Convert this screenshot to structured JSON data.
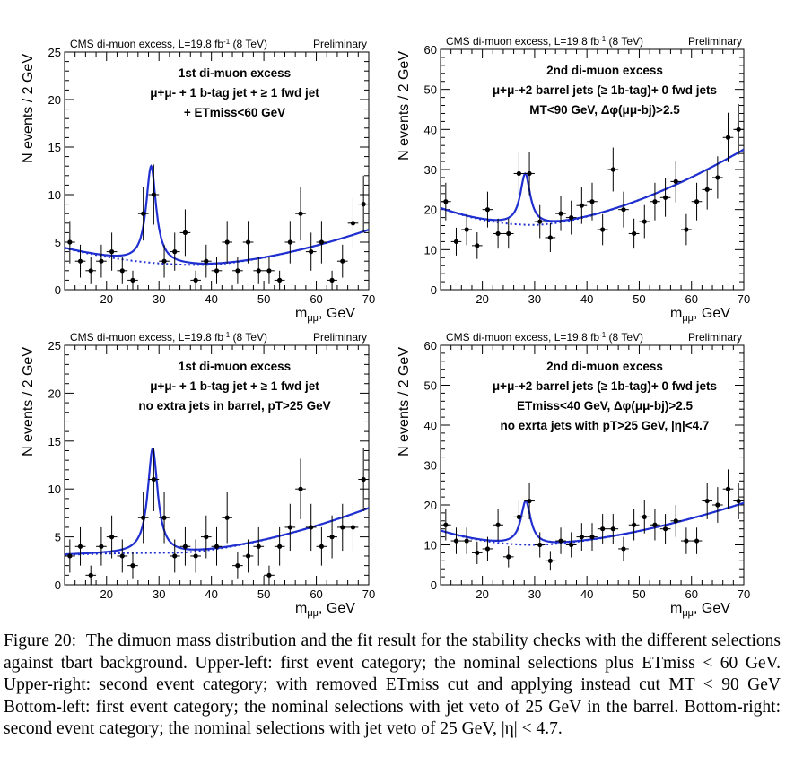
{
  "figure": {
    "header_left": "CMS di-muon excess, L=19.8 fb",
    "header_sup": "-1",
    "header_right_part": " (8 TeV)",
    "header_prelim": "Preliminary",
    "xlabel_main": "m",
    "xlabel_sub": "μμ",
    "xlabel_unit": ", GeV",
    "ylabel": "N events / 2 GeV",
    "colors": {
      "fit": "#1f2fd0",
      "points": "#000000"
    }
  },
  "chart_data": [
    {
      "type": "scatter",
      "panel": "upper-left",
      "title_lines": [
        "1st di-muon excess",
        "μ+μ- + 1 b-tag jet + ≥ 1 fwd jet",
        "+ ETmiss<60 GeV"
      ],
      "xlim": [
        12,
        70
      ],
      "ylim": [
        0,
        25
      ],
      "xticks": [
        20,
        30,
        40,
        50,
        60,
        70
      ],
      "yticks": [
        0,
        5,
        10,
        15,
        20,
        25
      ],
      "x": [
        13,
        15,
        17,
        19,
        21,
        23,
        25,
        27,
        29,
        31,
        33,
        35,
        37,
        39,
        41,
        43,
        45,
        47,
        49,
        51,
        53,
        55,
        57,
        59,
        61,
        63,
        65,
        67,
        69
      ],
      "y": [
        5,
        3,
        2,
        3,
        4,
        2,
        1,
        8,
        10,
        3,
        4,
        6,
        1,
        3,
        2,
        5,
        2,
        5,
        2,
        2,
        1,
        5,
        8,
        4,
        5,
        1,
        3,
        7,
        9
      ],
      "fit": {
        "peak_x": 28.5,
        "peak_y": 13.0,
        "bg_at_peak": 2.9
      }
    },
    {
      "type": "scatter",
      "panel": "upper-right",
      "title_lines": [
        "2nd di-muon excess",
        "μ+μ-+2 barrel jets (≥ 1b-tag)+ 0 fwd jets",
        "MT<90 GeV, Δφ(μμ-bj)>2.5"
      ],
      "xlim": [
        12,
        70
      ],
      "ylim": [
        0,
        60
      ],
      "xticks": [
        20,
        30,
        40,
        50,
        60,
        70
      ],
      "yticks": [
        0,
        10,
        20,
        30,
        40,
        50,
        60
      ],
      "x": [
        13,
        15,
        17,
        19,
        21,
        23,
        25,
        27,
        29,
        31,
        33,
        35,
        37,
        39,
        41,
        43,
        45,
        47,
        49,
        51,
        53,
        55,
        57,
        59,
        61,
        63,
        65,
        67,
        69
      ],
      "y": [
        22,
        12,
        15,
        11,
        20,
        14,
        14,
        29,
        29,
        17,
        13,
        19,
        18,
        21,
        22,
        15,
        30,
        20,
        14,
        17,
        22,
        23,
        27,
        15,
        22,
        25,
        28,
        38,
        40
      ],
      "fit": {
        "peak_x": 28.2,
        "peak_y": 29.0,
        "bg_at_peak": 16.5
      }
    },
    {
      "type": "scatter",
      "panel": "bottom-left",
      "title_lines": [
        "1st di-muon excess",
        "μ+μ- + 1 b-tag jet + ≥ 1 fwd jet",
        "no extra jets in barrel, pT>25 GeV"
      ],
      "xlim": [
        12,
        70
      ],
      "ylim": [
        0,
        25
      ],
      "xticks": [
        20,
        30,
        40,
        50,
        60,
        70
      ],
      "yticks": [
        0,
        5,
        10,
        15,
        20,
        25
      ],
      "x": [
        13,
        15,
        17,
        19,
        21,
        23,
        25,
        27,
        29,
        31,
        33,
        35,
        37,
        39,
        41,
        43,
        45,
        47,
        49,
        51,
        53,
        55,
        57,
        59,
        61,
        63,
        65,
        67,
        69
      ],
      "y": [
        3,
        4,
        1,
        4,
        5,
        3,
        2,
        7,
        11,
        7,
        3,
        4,
        3,
        5,
        4,
        7,
        2,
        3,
        4,
        1,
        4,
        6,
        10,
        6,
        4,
        5,
        6,
        6,
        11
      ],
      "fit": {
        "peak_x": 28.8,
        "peak_y": 14.2,
        "bg_at_peak": 3.4
      }
    },
    {
      "type": "scatter",
      "panel": "bottom-right",
      "title_lines": [
        "2nd di-muon excess",
        "μ+μ-+2 barrel jets (≥ 1b-tag)+ 0 fwd jets",
        "ETmiss<40 GeV, Δφ(μμ-bj)>2.5",
        "no exrta jets with pT>25 GeV, |η|<4.7"
      ],
      "xlim": [
        12,
        70
      ],
      "ylim": [
        0,
        60
      ],
      "xticks": [
        20,
        30,
        40,
        50,
        60,
        70
      ],
      "yticks": [
        0,
        10,
        20,
        30,
        40,
        50,
        60
      ],
      "x": [
        13,
        15,
        17,
        19,
        21,
        23,
        25,
        27,
        29,
        31,
        33,
        35,
        37,
        39,
        41,
        43,
        45,
        47,
        49,
        51,
        53,
        55,
        57,
        59,
        61,
        63,
        65,
        67,
        69
      ],
      "y": [
        15,
        11,
        11,
        8,
        9,
        15,
        7,
        17,
        21,
        10,
        6,
        11,
        10,
        12,
        12,
        14,
        14,
        9,
        15,
        17,
        15,
        14,
        16,
        11,
        11,
        21,
        20,
        24,
        21
      ],
      "fit": {
        "peak_x": 28.3,
        "peak_y": 21.0,
        "bg_at_peak": 10.2
      }
    }
  ],
  "caption": {
    "label": "Figure 20:",
    "text": "The dimuon mass distribution and the fit result for the stability checks with the different selections against tbart background. Upper-left: first event category; the nominal selections plus ETmiss < 60 GeV. Upper-right: second event category; with removed ETmiss cut and applying instead cut MT < 90 GeV Bottom-left: first event category; the nominal selections with jet veto of 25 GeV in the barrel. Bottom-right: second event category; the nominal selections with jet veto of 25 GeV, |η| < 4.7."
  }
}
